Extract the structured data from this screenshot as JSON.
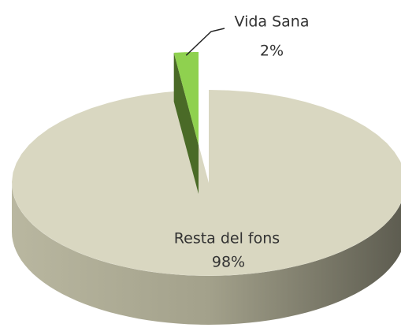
{
  "chart_data": {
    "type": "pie3d",
    "categories": [
      "Vida Sana",
      "Resta del fons"
    ],
    "values": [
      2,
      98
    ],
    "value_labels": [
      "2%",
      "98%"
    ],
    "colors": [
      "#8fd14f",
      "#d9d7c1"
    ]
  }
}
